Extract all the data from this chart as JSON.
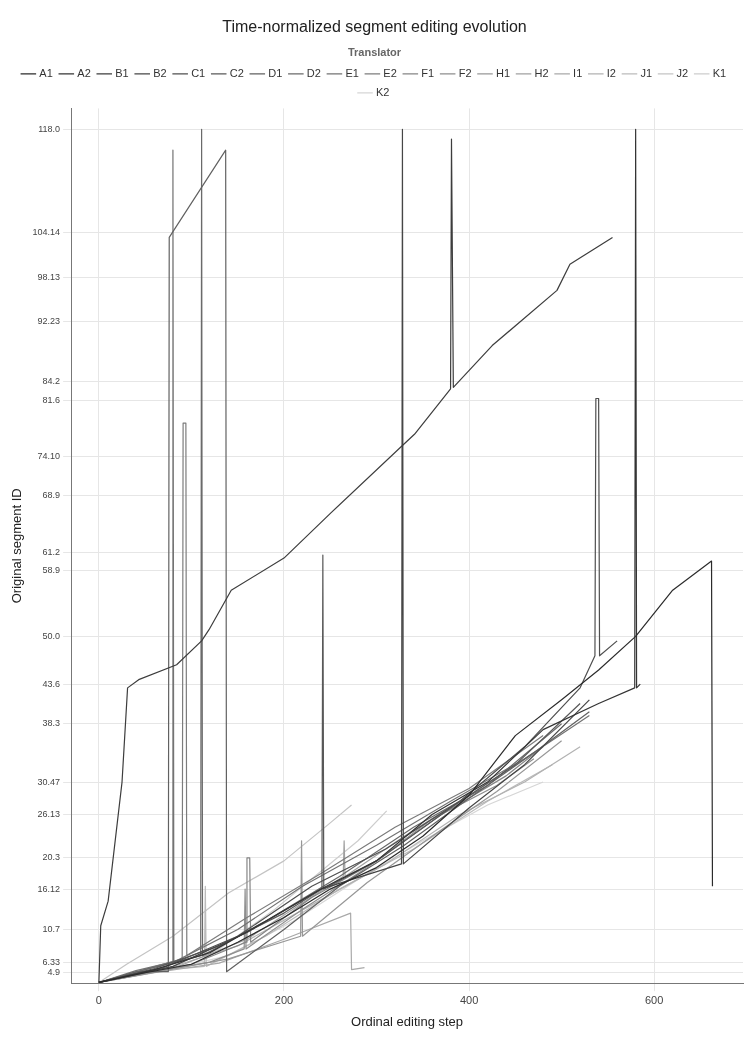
{
  "chart_data": {
    "type": "line",
    "title": "Time-normalized segment editing evolution",
    "xlabel": "Ordinal editing step",
    "ylabel": "Original segment ID",
    "legend_title": "Translator",
    "legend": "top",
    "grid": true,
    "xlim": [
      -30,
      696
    ],
    "xticks": [
      0,
      200,
      400,
      600
    ],
    "ylim": [
      3.5,
      120.8
    ],
    "yticks": [
      4.9,
      6.33,
      10.7,
      16.12,
      20.3,
      26.13,
      30.47,
      38.3,
      43.6,
      {
        "value": 50,
        "label": "50.0"
      },
      58.9,
      61.2,
      68.9,
      {
        "value": 74.1,
        "label": "74.10"
      },
      81.6,
      84.2,
      92.23,
      98.13,
      104.14,
      {
        "value": 118,
        "label": "118.0"
      }
    ],
    "series": [
      {
        "name": "A1",
        "color": "#2b2b2b",
        "x": [
          0,
          50,
          100,
          150,
          200,
          250,
          300,
          350,
          400,
          450,
          500,
          540,
          580,
          620,
          662,
          663
        ],
        "values": [
          3.6,
          4.9,
          6.04,
          9.0,
          12.3,
          16.12,
          19.0,
          23.2,
          28.7,
          36.7,
          41.5,
          45.5,
          50.0,
          56.2,
          60.1,
          16.5
        ]
      },
      {
        "name": "A2",
        "color": "#343434",
        "x": [
          0,
          60,
          120,
          180,
          240,
          300,
          360,
          420,
          480,
          540,
          579,
          580,
          581,
          585
        ],
        "values": [
          3.6,
          5.33,
          7.6,
          11.8,
          16.12,
          19.9,
          26.13,
          30.47,
          37.5,
          41.0,
          43.1,
          118,
          43.1,
          43.6
        ]
      },
      {
        "name": "B1",
        "color": "#3d3d3d",
        "x": [
          0,
          2,
          10,
          25,
          31,
          43,
          84,
          111,
          119,
          143,
          200,
          251,
          328,
          341,
          380,
          381,
          383,
          425,
          495,
          509,
          555
        ],
        "values": [
          3.6,
          11.2,
          14.5,
          30.47,
          43.1,
          44.2,
          46.2,
          49.4,
          50.9,
          56.2,
          60.5,
          66.6,
          75.6,
          77.1,
          83.2,
          116.7,
          83.4,
          89.0,
          96.4,
          99.9,
          103.5
        ]
      },
      {
        "name": "B2",
        "color": "#464646",
        "x": [
          0,
          80,
          160,
          240,
          327,
          328,
          329,
          400,
          460,
          530
        ],
        "values": [
          3.6,
          5.76,
          10.3,
          16.12,
          19.5,
          118,
          19.5,
          27.0,
          32.8,
          41.5
        ]
      },
      {
        "name": "C1",
        "color": "#4f4f4f",
        "x": [
          0,
          70,
          150,
          230,
          310,
          390,
          460,
          520,
          536,
          537,
          540,
          541,
          560
        ],
        "values": [
          3.6,
          5.6,
          9.8,
          16.5,
          21.5,
          27.9,
          35.2,
          43.1,
          47.4,
          81.9,
          81.9,
          47.4,
          49.4
        ]
      },
      {
        "name": "C2",
        "color": "#585858",
        "x": [
          0,
          60,
          130,
          200,
          241,
          242,
          243,
          300,
          380,
          450,
          520
        ],
        "values": [
          3.6,
          5.47,
          8.5,
          12.9,
          16.12,
          60.9,
          16.12,
          19.9,
          27.0,
          32.8,
          41.0
        ]
      },
      {
        "name": "D1",
        "color": "#616161",
        "x": [
          0,
          40,
          75,
          76,
          137,
          138,
          200,
          260,
          330,
          400,
          470,
          530
        ],
        "values": [
          3.6,
          5.04,
          5.04,
          103.5,
          115.2,
          5.04,
          10.7,
          16.5,
          22.0,
          28.3,
          34.4,
          39.9
        ]
      },
      {
        "name": "D2",
        "color": "#6a6a6a",
        "x": [
          0,
          50,
          110,
          111,
          112,
          180,
          260,
          340,
          420,
          500
        ],
        "values": [
          3.6,
          5.33,
          7.2,
          118,
          7.2,
          11.8,
          17.8,
          24.4,
          30.0,
          38.3
        ]
      },
      {
        "name": "E1",
        "color": "#737373",
        "x": [
          0,
          40,
          79,
          80,
          81,
          150,
          220,
          300,
          380,
          460,
          530
        ],
        "values": [
          3.6,
          5.19,
          6.33,
          115.2,
          6.33,
          10.7,
          16.5,
          22.0,
          27.9,
          33.6,
          39.4
        ]
      },
      {
        "name": "E2",
        "color": "#7c7c7c",
        "x": [
          0,
          45,
          90,
          91,
          94,
          95,
          160,
          240,
          320,
          400,
          480
        ],
        "values": [
          3.6,
          5.19,
          6.77,
          78.6,
          78.6,
          7.2,
          12.3,
          18.2,
          24.4,
          29.6,
          36.7
        ]
      },
      {
        "name": "F1",
        "color": "#858585",
        "x": [
          0,
          50,
          100,
          159,
          160,
          163,
          164,
          230,
          300,
          370,
          440,
          480
        ],
        "values": [
          3.6,
          5.04,
          6.04,
          9.0,
          20.3,
          20.3,
          9.0,
          15.0,
          19.9,
          26.13,
          31.3,
          35.2
        ]
      },
      {
        "name": "F2",
        "color": "#8e8e8e",
        "x": [
          0,
          60,
          120,
          157,
          158,
          159,
          220,
          290,
          360,
          430,
          470
        ],
        "values": [
          3.6,
          5.04,
          6.33,
          8.1,
          16.12,
          8.1,
          13.4,
          19.0,
          25.5,
          30.0,
          33.6
        ]
      },
      {
        "name": "H1",
        "color": "#979797",
        "x": [
          0,
          70,
          140,
          218,
          219,
          220,
          290,
          360,
          430,
          500
        ],
        "values": [
          3.6,
          5.19,
          6.77,
          9.8,
          22.6,
          9.8,
          17.0,
          23.2,
          29.2,
          36.0
        ]
      },
      {
        "name": "H2",
        "color": "#a0a0a0",
        "x": [
          0,
          80,
          160,
          264,
          265,
          266,
          330,
          400,
          470
        ],
        "values": [
          3.6,
          5.47,
          9.4,
          17.8,
          22.6,
          17.8,
          23.2,
          28.7,
          34.4
        ]
      },
      {
        "name": "I1",
        "color": "#a9a9a9",
        "x": [
          0,
          60,
          130,
          200,
          272,
          273,
          287
        ],
        "values": [
          3.6,
          4.9,
          6.19,
          9.4,
          12.9,
          5.33,
          5.6
        ]
      },
      {
        "name": "I2",
        "color": "#b2b2b2",
        "x": [
          0,
          70,
          150,
          230,
          310,
          390,
          460,
          520
        ],
        "values": [
          3.6,
          5.33,
          8.5,
          14.0,
          19.5,
          26.13,
          30.47,
          35.2
        ]
      },
      {
        "name": "J1",
        "color": "#bbbbbb",
        "x": [
          0,
          50,
          100,
          114,
          115,
          116,
          180,
          260,
          340,
          420,
          490
        ],
        "values": [
          3.6,
          5.19,
          5.6,
          5.76,
          16.5,
          5.76,
          9.8,
          16.12,
          21.5,
          27.9,
          32.8
        ]
      },
      {
        "name": "J2",
        "color": "#c4c4c4",
        "x": [
          0,
          30,
          80,
          140,
          200,
          250,
          273
        ],
        "values": [
          3.6,
          6.04,
          9.8,
          15.6,
          19.9,
          25.0,
          27.4
        ]
      },
      {
        "name": "K1",
        "color": "#cdcdcd",
        "x": [
          0,
          60,
          130,
          190,
          241,
          280,
          311
        ],
        "values": [
          3.6,
          5.33,
          8.1,
          13.4,
          18.6,
          22.6,
          26.6
        ]
      },
      {
        "name": "K2",
        "color": "#d6d6d6",
        "x": [
          0,
          70,
          140,
          210,
          280,
          350,
          420,
          480
        ],
        "values": [
          3.6,
          5.19,
          7.2,
          11.8,
          17.4,
          22.6,
          27.4,
          30.47
        ]
      }
    ]
  }
}
